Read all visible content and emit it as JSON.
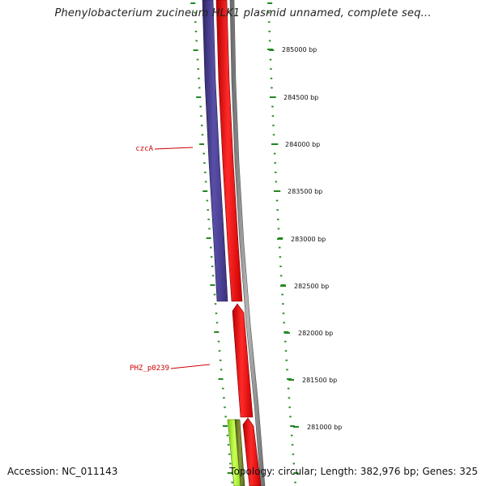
{
  "title": "Phenylobacterium zucineum HLK1 plasmid unnamed, complete seq...",
  "accession_text": "Accession: NC_011143",
  "topology_text": "Topology: circular; Length: 382,976 bp; Genes: 325",
  "colors": {
    "gene_reverse": "#4a3f8f",
    "gene_forward": "#ee1111",
    "gene_lime": "#99ee22",
    "gene_olive": "#6f7a2a",
    "backbone": "#8a8a8a",
    "tick": "#228822",
    "label_red": "#cc0000"
  },
  "ticks": [
    {
      "position": 285000,
      "label": "285000 bp"
    },
    {
      "position": 284500,
      "label": "284500 bp"
    },
    {
      "position": 284000,
      "label": "284000 bp"
    },
    {
      "position": 283500,
      "label": "283500 bp"
    },
    {
      "position": 283000,
      "label": "283000 bp"
    },
    {
      "position": 282500,
      "label": "282500 bp"
    },
    {
      "position": 282000,
      "label": "282000 bp"
    },
    {
      "position": 281500,
      "label": "281500 bp"
    },
    {
      "position": 281000,
      "label": "281000 bp"
    }
  ],
  "gene_labels": [
    {
      "name": "czcA"
    },
    {
      "name": "PHZ_p0239"
    }
  ]
}
